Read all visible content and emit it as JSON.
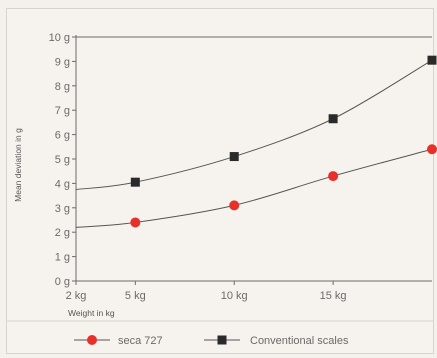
{
  "chart_data": {
    "type": "line",
    "title": "",
    "xlabel": "Weight in kg",
    "ylabel": "Mean deviation in g",
    "x_tick_labels": [
      "2 kg",
      "5 kg",
      "10 kg",
      "15 kg"
    ],
    "x_ticks": [
      2,
      5,
      10,
      15
    ],
    "y_tick_labels": [
      "0 g",
      "1 g",
      "2 g",
      "3 g",
      "4 g",
      "5 g",
      "6 g",
      "7 g",
      "8 g",
      "9 g",
      "10 g"
    ],
    "y_ticks": [
      0,
      1,
      2,
      3,
      4,
      5,
      6,
      7,
      8,
      9,
      10
    ],
    "xlim": [
      2,
      20
    ],
    "ylim": [
      0,
      10
    ],
    "grid": false,
    "legend_position": "bottom",
    "series": [
      {
        "name": "seca 727",
        "color": "#e8302a",
        "marker": "circle",
        "x": [
          2,
          5,
          10,
          15,
          20
        ],
        "y": [
          2.2,
          2.4,
          3.1,
          4.3,
          5.4
        ],
        "marker_indices": [
          1,
          2,
          3,
          4
        ]
      },
      {
        "name": "Conventional scales",
        "color": "#2a2a2a",
        "marker": "square",
        "x": [
          2,
          5,
          10,
          15,
          20
        ],
        "y": [
          3.75,
          4.05,
          5.1,
          6.65,
          9.05
        ],
        "marker_indices": [
          1,
          2,
          3,
          4
        ]
      }
    ]
  }
}
